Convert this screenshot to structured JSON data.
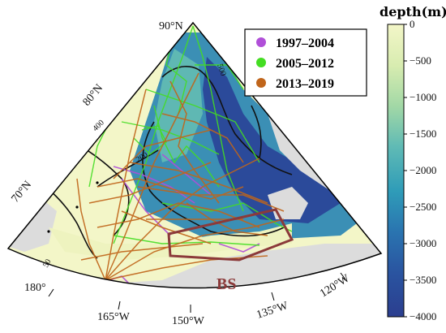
{
  "map": {
    "lat_labels": [
      "90°N",
      "80°N",
      "70°N"
    ],
    "lon_labels": [
      "180°",
      "165°W",
      "150°W",
      "135°W",
      "120°W"
    ],
    "contour_labels": [
      "500",
      "400",
      "200",
      "50"
    ],
    "region_label": "BS",
    "colors": {
      "land": "#dcdcdc",
      "deep": "#2b3e8f",
      "shallow": "#f3f6c8",
      "region": "#8b3a3a"
    }
  },
  "legend": {
    "entries": [
      {
        "label": "1997–2004",
        "color": "#b04fd8"
      },
      {
        "label": "2005–2012",
        "color": "#44dd22"
      },
      {
        "label": "2013–2019",
        "color": "#c0651b"
      }
    ]
  },
  "colorbar": {
    "title": "depth(m)",
    "ticks": [
      "0",
      "−500",
      "−1000",
      "−1500",
      "−2000",
      "−2500",
      "−3000",
      "−3500",
      "−4000"
    ],
    "range": [
      0,
      -4000
    ],
    "colors": [
      "#f3f6c8",
      "#c9e6a8",
      "#7fc9b3",
      "#3aa3b8",
      "#2a79b2",
      "#2a58a4",
      "#2b3e8f"
    ]
  }
}
